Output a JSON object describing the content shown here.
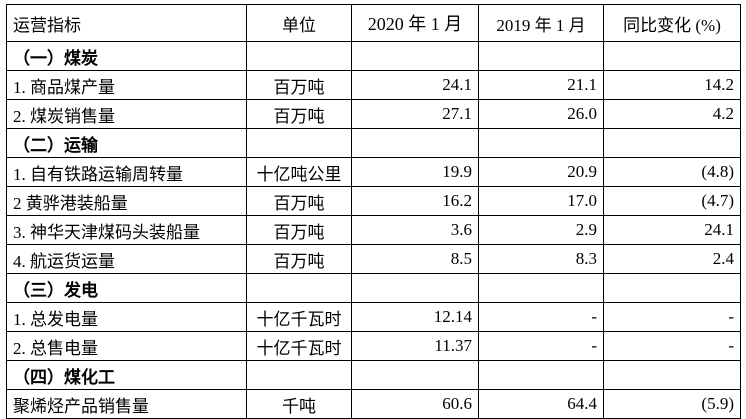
{
  "table": {
    "headers": [
      "运营指标",
      "单位",
      "2020 年 1 月",
      "2019 年 1 月",
      "同比变化 (%)"
    ],
    "rows": [
      {
        "type": "section",
        "cells": [
          "（一）煤炭",
          "",
          "",
          "",
          ""
        ]
      },
      {
        "type": "data",
        "cells": [
          "1. 商品煤产量",
          "百万吨",
          "24.1",
          "21.1",
          "14.2"
        ]
      },
      {
        "type": "data",
        "cells": [
          "2. 煤炭销售量",
          "百万吨",
          "27.1",
          "26.0",
          "4.2"
        ]
      },
      {
        "type": "section",
        "cells": [
          "（二）运输",
          "",
          "",
          "",
          ""
        ]
      },
      {
        "type": "data",
        "cells": [
          "1. 自有铁路运输周转量",
          "十亿吨公里",
          "19.9",
          "20.9",
          "(4.8)"
        ]
      },
      {
        "type": "data",
        "cells": [
          "2  黄骅港装船量",
          "百万吨",
          "16.2",
          "17.0",
          "(4.7)"
        ]
      },
      {
        "type": "data",
        "cells": [
          "3. 神华天津煤码头装船量",
          "百万吨",
          "3.6",
          "2.9",
          "24.1"
        ]
      },
      {
        "type": "data",
        "cells": [
          "4. 航运货运量",
          "百万吨",
          "8.5",
          "8.3",
          "2.4"
        ]
      },
      {
        "type": "section",
        "cells": [
          "（三）发电",
          "",
          "",
          "",
          ""
        ]
      },
      {
        "type": "data",
        "cells": [
          "1. 总发电量",
          "十亿千瓦时",
          "12.14",
          "-",
          "-"
        ]
      },
      {
        "type": "data",
        "cells": [
          "2. 总售电量",
          "十亿千瓦时",
          "11.37",
          "-",
          "-"
        ]
      },
      {
        "type": "section",
        "cells": [
          "（四）煤化工",
          "",
          "",
          "",
          ""
        ]
      },
      {
        "type": "data",
        "cells": [
          "聚烯烃产品销售量",
          "千吨",
          "60.6",
          "64.4",
          "(5.9)"
        ]
      }
    ]
  }
}
